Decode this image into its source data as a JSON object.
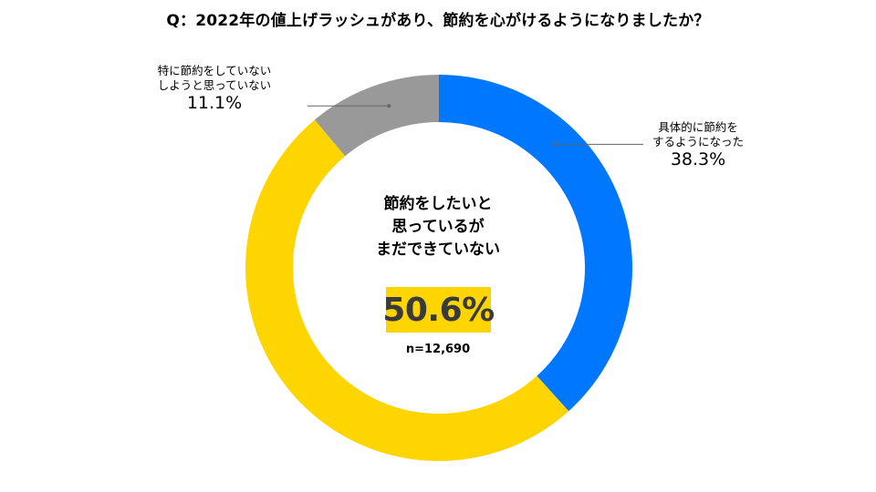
{
  "title": "Q：2022年の値上げラッシュがあり、節約を心がけるようになりましたか？",
  "center": {
    "lines": [
      "節約をしたいと",
      "思っているが",
      "まだできていない"
    ],
    "percent_label": "50.6%",
    "n_label": "n=12,690"
  },
  "labels": {
    "blue": {
      "lines": [
        "具体的に節約を",
        "するようになった"
      ],
      "percent": "38.3%"
    },
    "gray": {
      "lines": [
        "特に節約をしていない",
        "しようと思っていない"
      ],
      "percent": "11.1%"
    }
  },
  "colors": {
    "blue": "#0077ff",
    "yellow": "#ffd500",
    "gray": "#999999",
    "leader": "#666666",
    "highlight": "#ffd500"
  },
  "chart_data": {
    "type": "pie",
    "variant": "donut",
    "categories": [
      "具体的に節約をするようになった",
      "節約をしたいと思っているがまだできていない",
      "特に節約をしていないしようと思っていない"
    ],
    "values": [
      38.3,
      50.6,
      11.1
    ],
    "start": "top",
    "direction": "clockwise",
    "legend": "none"
  }
}
